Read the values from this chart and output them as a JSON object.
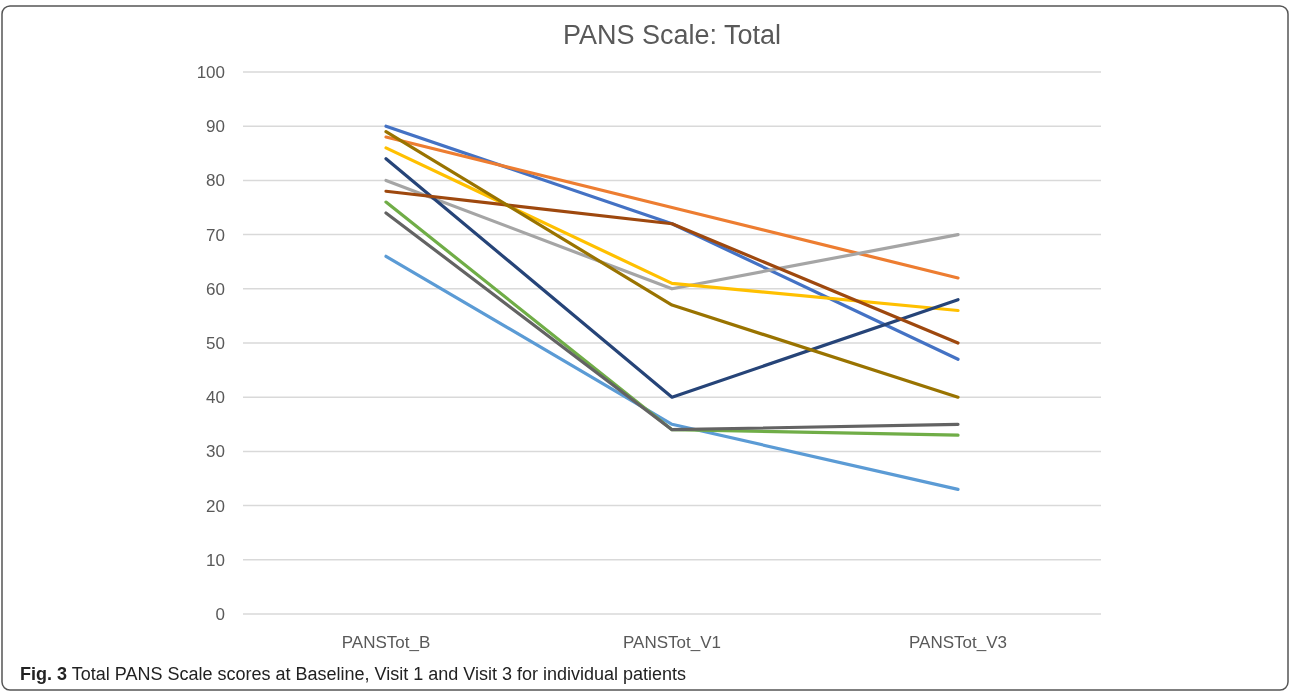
{
  "chart_data": {
    "type": "line",
    "title": "PANS Scale: Total",
    "categories": [
      "PANSTot_B",
      "PANSTot_V1",
      "PANSTot_V3"
    ],
    "series": [
      {
        "color": "#4472c4",
        "values": [
          90,
          72,
          47
        ]
      },
      {
        "color": "#ed7d31",
        "values": [
          88,
          75,
          62
        ]
      },
      {
        "color": "#a5a5a5",
        "values": [
          80,
          60,
          70
        ]
      },
      {
        "color": "#ffc000",
        "values": [
          86,
          61,
          56
        ]
      },
      {
        "color": "#5b9bd5",
        "values": [
          66,
          35,
          23
        ]
      },
      {
        "color": "#70ad47",
        "values": [
          76,
          34,
          33
        ]
      },
      {
        "color": "#264478",
        "values": [
          84,
          40,
          58
        ]
      },
      {
        "color": "#9e480e",
        "values": [
          78,
          72,
          50
        ]
      },
      {
        "color": "#636363",
        "values": [
          74,
          34,
          35
        ]
      },
      {
        "color": "#997300",
        "values": [
          89,
          57,
          40
        ]
      }
    ],
    "ylim": [
      0,
      100
    ],
    "yticks": [
      0,
      10,
      20,
      30,
      40,
      50,
      60,
      70,
      80,
      90,
      100
    ],
    "grid": "y",
    "marker": "none",
    "line_style": "solid",
    "annotations": [
      "Fig. 3  Total PANS Scale scores at Baseline, Visit 1 and Visit 3 for individual patients"
    ]
  }
}
